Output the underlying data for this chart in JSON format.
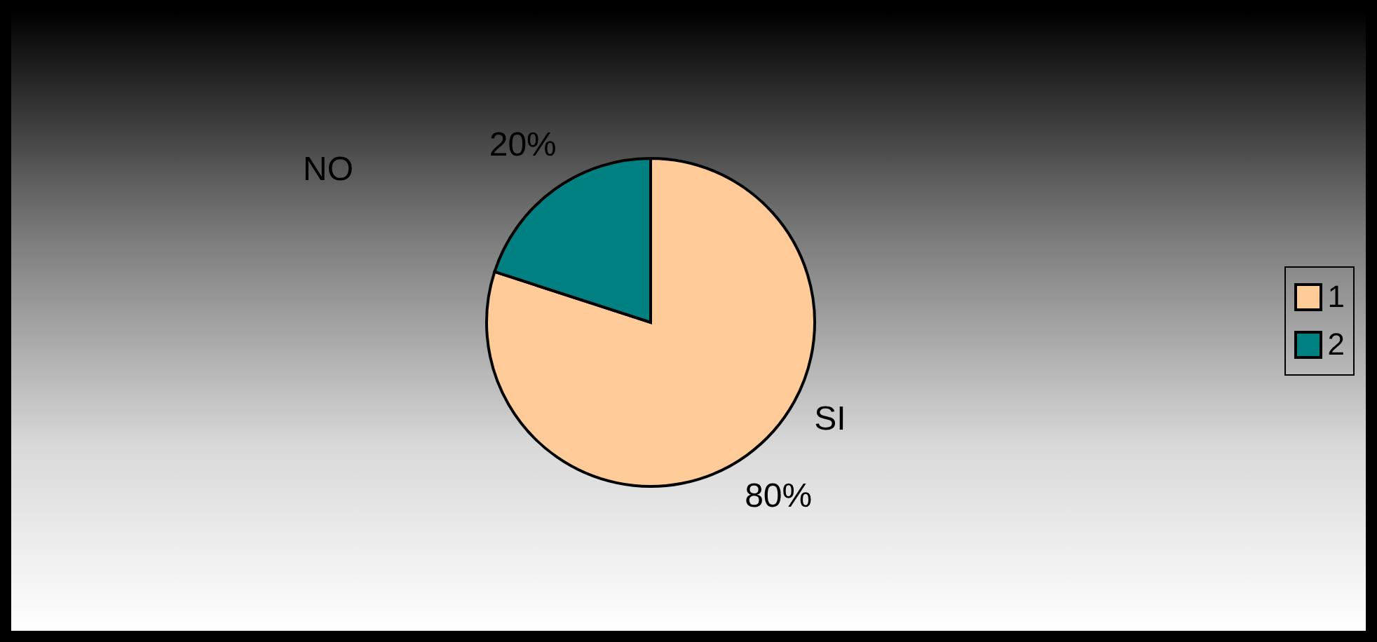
{
  "chart_data": {
    "type": "pie",
    "categories": [
      "1",
      "2"
    ],
    "values": [
      80,
      20
    ],
    "colors": [
      "#ffcc99",
      "#008080"
    ],
    "value_labels": [
      "80%",
      "20%"
    ],
    "annotations": [
      "SI",
      "NO"
    ],
    "legend": "right"
  }
}
